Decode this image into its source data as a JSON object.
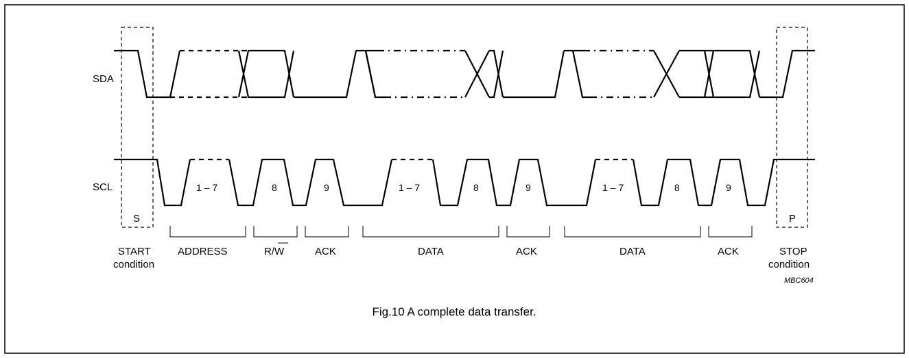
{
  "signals": {
    "sda": "SDA",
    "scl": "SCL"
  },
  "conditions": {
    "start_letter": "S",
    "stop_letter": "P"
  },
  "clock_labels": [
    "1 – 7",
    "8",
    "9",
    "1 – 7",
    "8",
    "9",
    "1 – 7",
    "8",
    "9"
  ],
  "phases": {
    "start_1": "START",
    "start_2": "condition",
    "address": "ADDRESS",
    "rw": "R/",
    "rw_bar": "W",
    "ack1": "ACK",
    "data1": "DATA",
    "ack2": "ACK",
    "data2": "DATA",
    "ack3": "ACK",
    "stop_1": "STOP",
    "stop_2": "condition"
  },
  "figure_code": "MBC604",
  "caption": "Fig.10  A complete data transfer."
}
